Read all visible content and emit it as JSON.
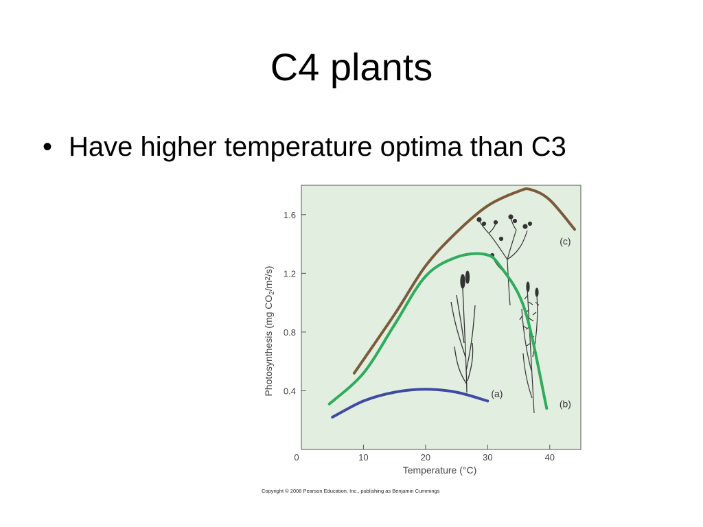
{
  "slide": {
    "title": "C4 plants",
    "bullet_marker": "•",
    "bullet": "Have higher temperature optima than C3"
  },
  "copyright": "Copyright © 2006 Pearson Education, Inc., publishing as Benjamin Cummings",
  "colors": {
    "plot_background": "#e2eee0",
    "series_a": "#3f4aa3",
    "series_b": "#2eab5b",
    "series_c": "#7a5a3a",
    "axis": "#555555"
  },
  "chart_data": {
    "type": "line",
    "xlabel": "Temperature (°C)",
    "ylabel_parts": [
      "Photosynthesis (mg CO",
      "2",
      "/m",
      "2",
      "/s)"
    ],
    "xlim": [
      0,
      45
    ],
    "ylim": [
      0,
      1.8
    ],
    "x_ticks": [
      0,
      10,
      20,
      30,
      40
    ],
    "x_tick_labels": [
      "0",
      "10",
      "20",
      "30",
      "40"
    ],
    "y_ticks": [
      0.4,
      0.8,
      1.2,
      1.6
    ],
    "y_tick_labels": [
      "0.4",
      "0.8",
      "1.2",
      "1.6"
    ],
    "grid": false,
    "series": [
      {
        "name": "(a)",
        "color": "#3f4aa3",
        "points": [
          [
            5,
            0.22
          ],
          [
            10,
            0.33
          ],
          [
            15,
            0.39
          ],
          [
            20,
            0.41
          ],
          [
            25,
            0.39
          ],
          [
            30,
            0.33
          ]
        ]
      },
      {
        "name": "(b)",
        "color": "#2eab5b",
        "points": [
          [
            4.5,
            0.31
          ],
          [
            10,
            0.52
          ],
          [
            15,
            0.85
          ],
          [
            20,
            1.18
          ],
          [
            25,
            1.31
          ],
          [
            29.5,
            1.33
          ],
          [
            32,
            1.25
          ],
          [
            36,
            0.95
          ],
          [
            39.5,
            0.28
          ]
        ]
      },
      {
        "name": "(c)",
        "color": "#7a5a3a",
        "points": [
          [
            8.5,
            0.52
          ],
          [
            15,
            0.92
          ],
          [
            20,
            1.25
          ],
          [
            25,
            1.48
          ],
          [
            30,
            1.66
          ],
          [
            35,
            1.76
          ],
          [
            37,
            1.77
          ],
          [
            40,
            1.7
          ],
          [
            44,
            1.5
          ]
        ]
      }
    ],
    "annotations": [
      {
        "text": "(a)",
        "series": "(a)",
        "x": 31.5,
        "y": 0.38
      },
      {
        "text": "(b)",
        "series": "(b)",
        "x": 42.5,
        "y": 0.31
      },
      {
        "text": "(c)",
        "series": "(c)",
        "x": 42.5,
        "y": 1.42
      }
    ]
  }
}
